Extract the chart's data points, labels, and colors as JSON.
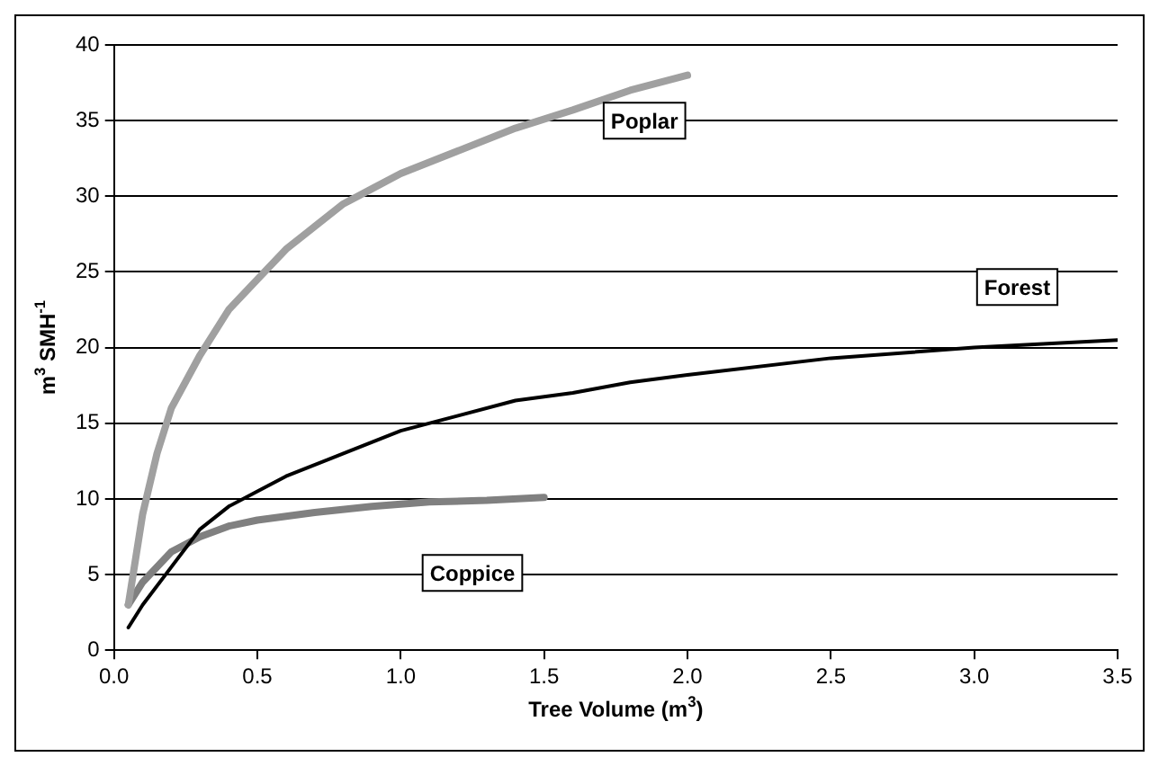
{
  "chart_data": {
    "type": "line",
    "xlabel": "Tree Volume (m$^{3}$)",
    "ylabel": "m$^{3}$ SMH$^{-1}$",
    "xlim": [
      0,
      3.5
    ],
    "xticks": [
      {
        "value": 0,
        "label": "0.0"
      },
      {
        "value": 0.5,
        "label": "0.5"
      },
      {
        "value": 1,
        "label": "1.0"
      },
      {
        "value": 1.5,
        "label": "1.5"
      },
      {
        "value": 2,
        "label": "2.0"
      },
      {
        "value": 2.5,
        "label": "2.5"
      },
      {
        "value": 3,
        "label": "3.0"
      },
      {
        "value": 3.5,
        "label": "3.5"
      }
    ],
    "ylim": [
      0,
      40
    ],
    "yticks": [
      0,
      5,
      10,
      15,
      20,
      25,
      30,
      35,
      40
    ],
    "grid": "y",
    "legend": false,
    "marker": "none",
    "series": [
      {
        "name": "Poplar",
        "color": "#a0a0a0",
        "x": [
          0.05,
          0.1,
          0.15,
          0.2,
          0.3,
          0.4,
          0.5,
          0.6,
          0.7,
          0.8,
          0.9,
          1.0,
          1.2,
          1.4,
          1.6,
          1.8,
          2.0
        ],
        "values": [
          3,
          9,
          13,
          16,
          19.5,
          22.5,
          24.5,
          26.5,
          28,
          29.5,
          30.5,
          31.5,
          33,
          34.5,
          35.7,
          37,
          38
        ]
      },
      {
        "name": "Forest",
        "color": "#000000",
        "x": [
          0.05,
          0.1,
          0.2,
          0.3,
          0.4,
          0.5,
          0.6,
          0.8,
          1.0,
          1.2,
          1.4,
          1.6,
          1.8,
          2.0,
          2.5,
          3.0,
          3.3,
          3.5
        ],
        "values": [
          1.5,
          3,
          5.5,
          8,
          9.5,
          10.5,
          11.5,
          13,
          14.5,
          15.5,
          16.5,
          17,
          17.7,
          18.2,
          19.3,
          20,
          20.3,
          20.5
        ]
      },
      {
        "name": "Coppice",
        "color": "#808080",
        "x": [
          0.05,
          0.1,
          0.2,
          0.3,
          0.4,
          0.5,
          0.7,
          0.9,
          1.1,
          1.3,
          1.5
        ],
        "values": [
          3,
          4.5,
          6.5,
          7.5,
          8.2,
          8.6,
          9.1,
          9.5,
          9.8,
          9.9,
          10.1
        ]
      }
    ]
  }
}
